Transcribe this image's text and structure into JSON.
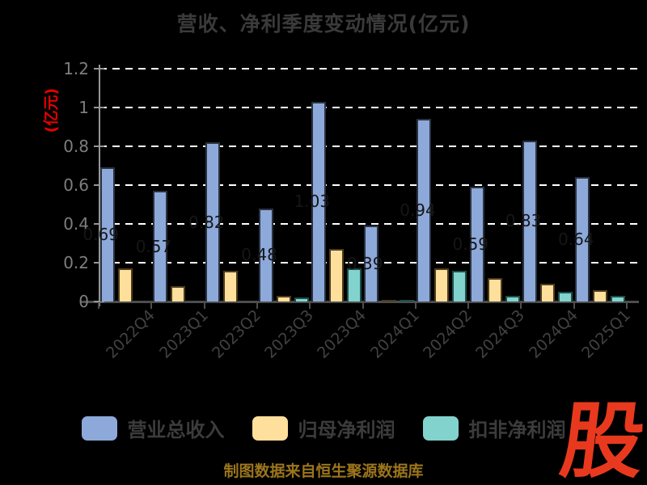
{
  "chart": {
    "title": "营收、净利季度变动情况(亿元)",
    "y_axis_label": "(亿元)"
  },
  "chart_data": {
    "type": "bar",
    "title": "营收、净利季度变动情况(亿元)",
    "ylabel": "(亿元)",
    "xlabel": "",
    "categories": [
      "2022Q4",
      "2023Q1",
      "2023Q2",
      "2023Q3",
      "2023Q4",
      "2024Q1",
      "2024Q2",
      "2024Q3",
      "2024Q4",
      "2025Q1"
    ],
    "series": [
      {
        "name": "营业总收入",
        "color": "#8da9da",
        "edge": "#2b3240",
        "values": [
          0.69,
          0.57,
          0.82,
          0.48,
          1.03,
          0.39,
          0.94,
          0.59,
          0.83,
          0.64
        ],
        "labels": [
          "0.69",
          "0.57",
          "0.82",
          "0.48",
          "1.03",
          "0.39",
          "0.94",
          "0.59",
          "0.83",
          "0.64"
        ],
        "show_labels": true
      },
      {
        "name": "归母净利润",
        "color": "#ffdf9c",
        "edge": "#4d3d1c",
        "values": [
          0.17,
          0.08,
          0.16,
          0.03,
          0.27,
          0.0,
          0.17,
          0.12,
          0.09,
          0.06
        ],
        "show_labels": false
      },
      {
        "name": "扣非净利润",
        "color": "#82d3cd",
        "edge": "#1e4f4b",
        "values": [
          null,
          null,
          null,
          0.02,
          0.17,
          0.01,
          0.16,
          0.03,
          0.05,
          0.03
        ],
        "show_labels": false
      }
    ],
    "ylim": [
      0,
      1.2
    ],
    "yticks": [
      "0",
      "0.2",
      "0.4",
      "0.6",
      "0.8",
      "1",
      "1.2"
    ],
    "grid": "horizontal-dashed-white",
    "legend_position": "bottom",
    "value_label_color": "#161616",
    "background": "#000000"
  },
  "footer": {
    "source_note": "制图数据来自恒生聚源数据库"
  },
  "logo": {
    "text": "股",
    "color": "#e8391e"
  }
}
